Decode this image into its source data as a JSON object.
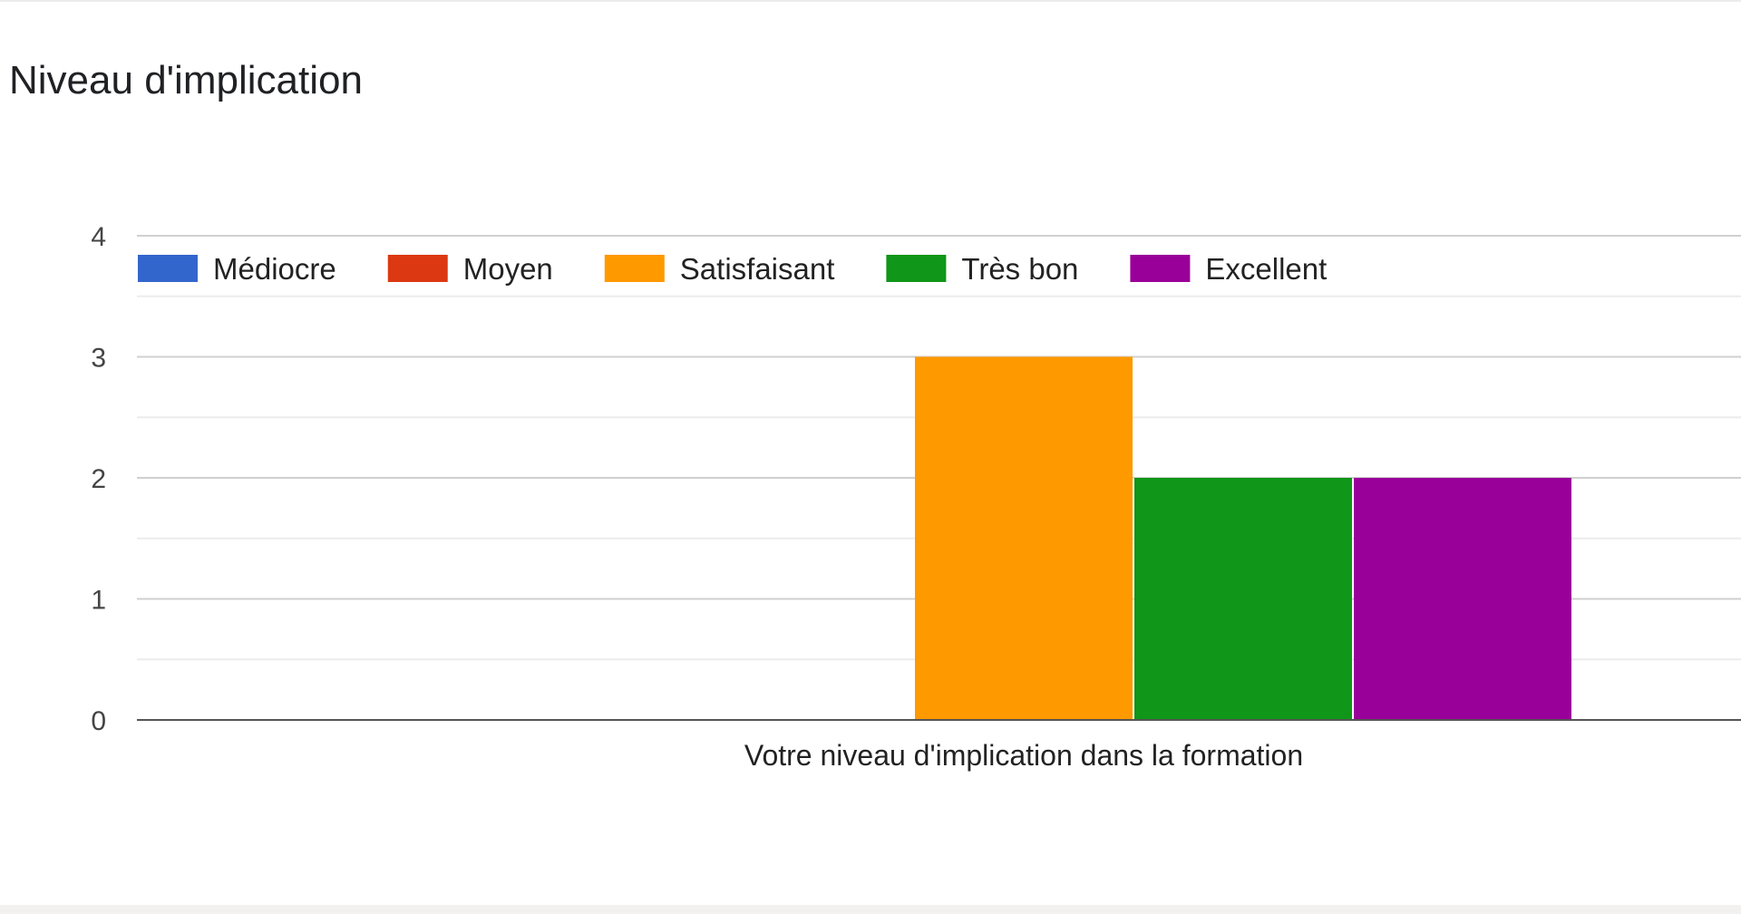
{
  "chart_data": {
    "type": "bar",
    "title": "Niveau d'implication",
    "categories": [
      "Votre niveau d'implication dans la formation"
    ],
    "series": [
      {
        "name": "Médiocre",
        "values": [
          0
        ],
        "color": "#3366cc"
      },
      {
        "name": "Moyen",
        "values": [
          0
        ],
        "color": "#dc3912"
      },
      {
        "name": "Satisfaisant",
        "values": [
          3
        ],
        "color": "#ff9900"
      },
      {
        "name": "Très bon",
        "values": [
          2
        ],
        "color": "#109618"
      },
      {
        "name": "Excellent",
        "values": [
          2
        ],
        "color": "#990099"
      }
    ],
    "yticks": [
      "0",
      "1",
      "2",
      "3",
      "4"
    ],
    "ylim": [
      0,
      4
    ],
    "grid": true,
    "legend_position": "top"
  }
}
